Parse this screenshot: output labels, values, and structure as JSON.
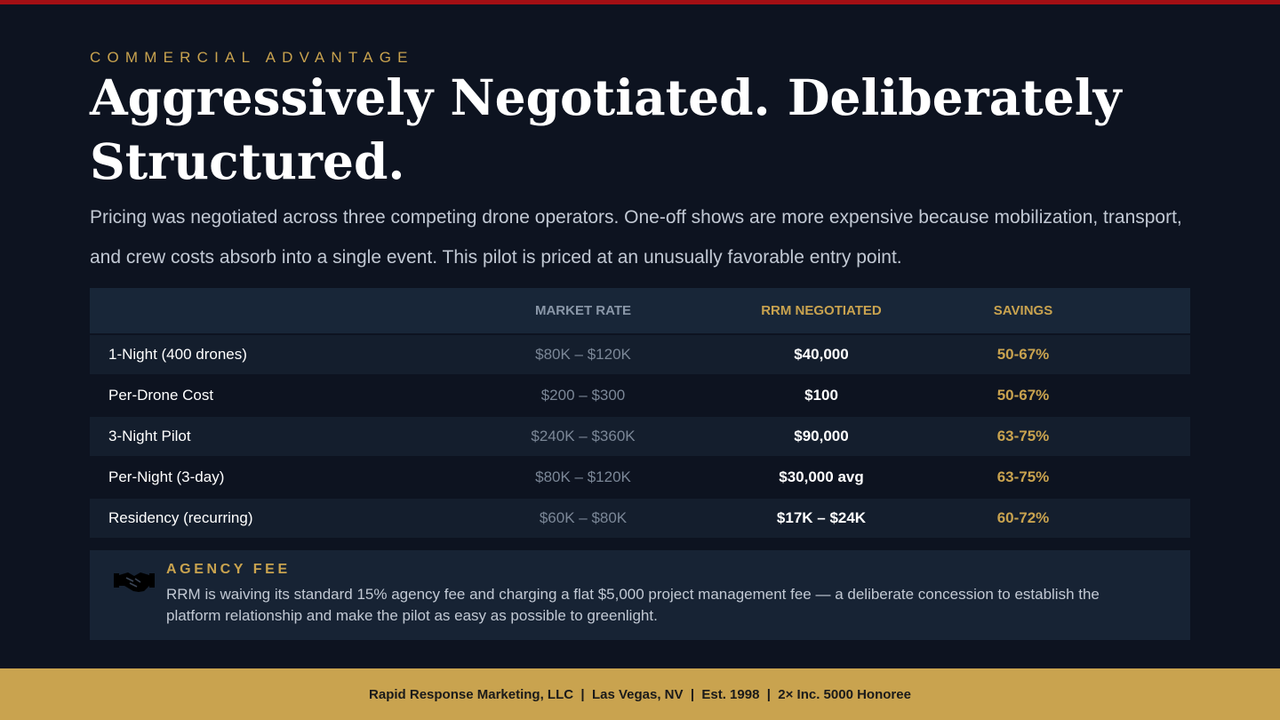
{
  "colors": {
    "background": "#0d1320",
    "accent_gold": "#c9a34f",
    "accent_red": "#a30f14",
    "text_light": "#c2c9d4"
  },
  "header": {
    "eyebrow": "COMMERCIAL ADVANTAGE",
    "title": "Aggressively Negotiated. Deliberately Structured.",
    "intro": "Pricing was negotiated across three competing drone operators. One-off shows are more expensive because mobilization, transport, and crew costs absorb into a single event. This pilot is priced at an unusually favorable entry point."
  },
  "table": {
    "columns": [
      "",
      "MARKET RATE",
      "RRM NEGOTIATED",
      "SAVINGS"
    ],
    "rows": [
      {
        "item": "1-Night (400 drones)",
        "market": "$80K – $120K",
        "negotiated": "$40,000",
        "savings": "50-67%"
      },
      {
        "item": "Per-Drone Cost",
        "market": "$200 – $300",
        "negotiated": "$100",
        "savings": "50-67%"
      },
      {
        "item": "3-Night Pilot",
        "market": "$240K – $360K",
        "negotiated": "$90,000",
        "savings": "63-75%"
      },
      {
        "item": "Per-Night (3-day)",
        "market": "$80K – $120K",
        "negotiated": "$30,000 avg",
        "savings": "63-75%"
      },
      {
        "item": "Residency (recurring)",
        "market": "$60K – $80K",
        "negotiated": "$17K – $24K",
        "savings": "60-72%"
      }
    ]
  },
  "agency_fee": {
    "icon": "handshake-icon",
    "label": "AGENCY FEE",
    "text": "RRM is waiving its standard 15% agency fee and charging a flat $5,000 project management fee — a deliberate concession to establish the platform relationship and make the pilot as easy as possible to greenlight."
  },
  "footer": {
    "text": "Rapid Response Marketing, LLC  |  Las Vegas, NV  |  Est. 1998  |  2× Inc. 5000 Honoree"
  }
}
